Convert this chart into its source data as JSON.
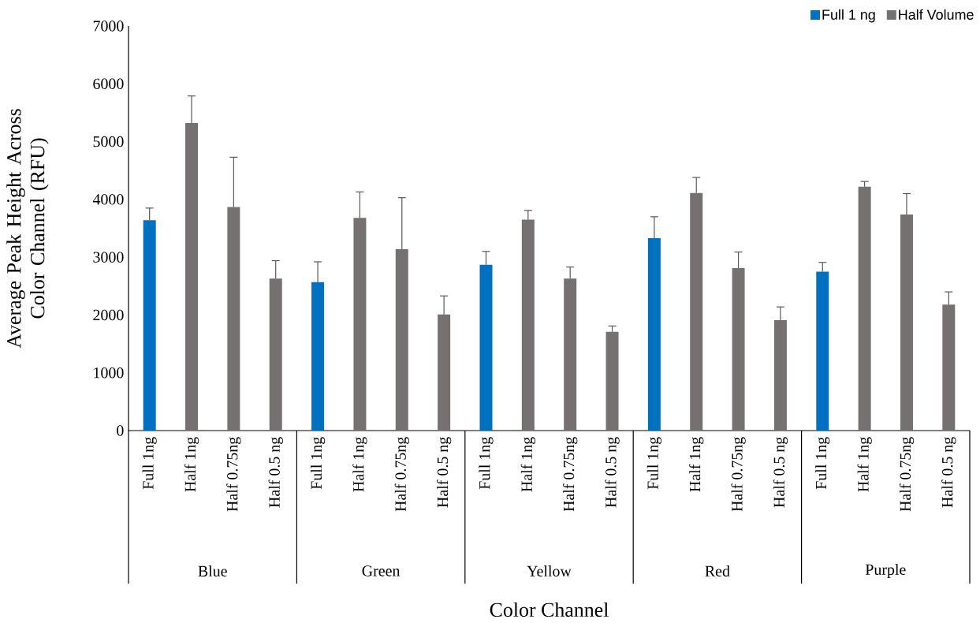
{
  "chart_data": {
    "type": "bar",
    "xlabel": "Color Channel",
    "ylabel": "Average Peak Height Across Color Channel (RFU)",
    "categories": [
      "Full 1ng",
      "Half 1ng",
      "Half 0.75ng",
      "Half 0.5 ng",
      "Full 1ng",
      "Half 1ng",
      "Half 0.75ng",
      "Half 0.5 ng",
      "Full 1ng",
      "Half 1ng",
      "Half 0.75ng",
      "Half 0.5 ng",
      "Full 1ng",
      "Half 1ng",
      "Half 0.75ng",
      "Half 0.5 ng",
      "Full 1ng",
      "Half 1ng",
      "Half 0.75ng",
      "Half 0.5 ng"
    ],
    "annotations": [
      "Blue",
      "Green",
      "Yellow",
      "Red",
      "Purple"
    ],
    "series": [
      {
        "name": "Full 1 ng",
        "color": "#0070c0",
        "values": [
          3640,
          null,
          null,
          null,
          2570,
          null,
          null,
          null,
          2870,
          null,
          null,
          null,
          3330,
          null,
          null,
          null,
          2750,
          null,
          null,
          null
        ],
        "errors": [
          210,
          null,
          null,
          null,
          350,
          null,
          null,
          null,
          230,
          null,
          null,
          null,
          370,
          null,
          null,
          null,
          160,
          null,
          null,
          null
        ]
      },
      {
        "name": "Half Volume",
        "color": "#767171",
        "values": [
          null,
          5320,
          3870,
          2630,
          null,
          3680,
          3140,
          2010,
          null,
          3650,
          2630,
          1710,
          null,
          4110,
          2810,
          1910,
          null,
          4220,
          3740,
          2180
        ],
        "errors": [
          null,
          470,
          860,
          310,
          null,
          450,
          890,
          320,
          null,
          160,
          200,
          100,
          null,
          270,
          280,
          230,
          null,
          90,
          360,
          220
        ]
      }
    ],
    "ylim": [
      0,
      7000
    ],
    "yticks": [
      0,
      1000,
      2000,
      3000,
      4000,
      5000,
      6000,
      7000
    ],
    "legend": "top right"
  }
}
